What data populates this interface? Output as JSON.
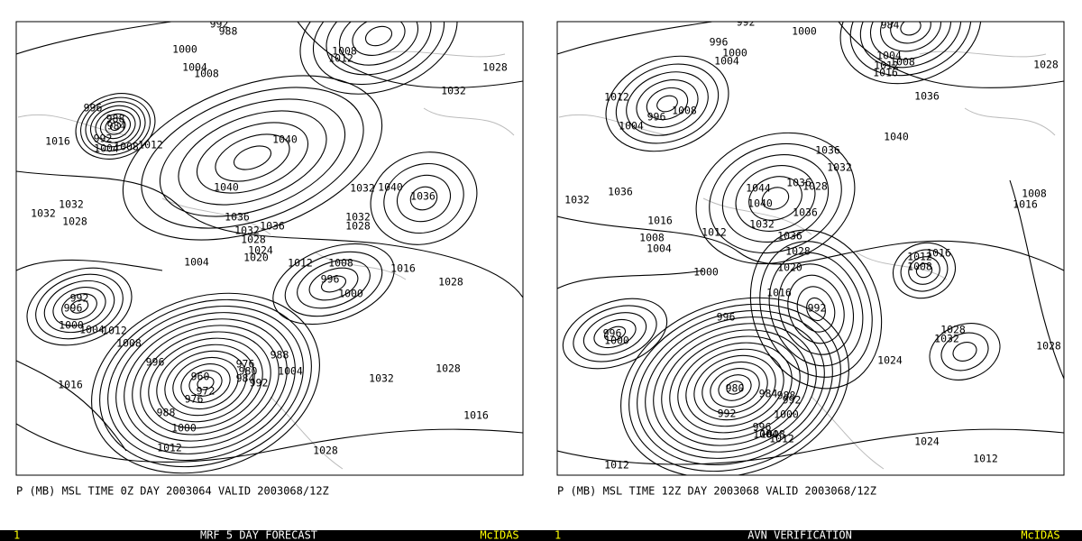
{
  "panels": [
    {
      "caption": "P (MB) MSL TIME 0Z DAY 2003064 VALID 2003068/12Z",
      "footer_number": "1",
      "footer_title": "MRF 5 DAY FORECAST",
      "footer_brand": "McIDAS",
      "contour_labels": [
        "992",
        "988",
        "1000",
        "1008",
        "1012",
        "1028",
        "1004",
        "1008",
        "1032",
        "996",
        "988",
        "984",
        "1016",
        "992",
        "1012",
        "1004",
        "1008",
        "1040",
        "1040",
        "1032",
        "1040",
        "1036",
        "1032",
        "1032",
        "1028",
        "1036",
        "1032",
        "1036",
        "1032",
        "1028",
        "1028",
        "1024",
        "1020",
        "1004",
        "1012",
        "1008",
        "1016",
        "996",
        "1000",
        "1028",
        "992",
        "996",
        "1000",
        "1004",
        "1012",
        "1008",
        "988",
        "996",
        "976",
        "980",
        "984",
        "992",
        "960",
        "1004",
        "1028",
        "1032",
        "1016",
        "972",
        "976",
        "988",
        "1016",
        "1000",
        "1012",
        "1028"
      ]
    },
    {
      "caption": "P (MB) MSL TIME 12Z DAY 2003068 VALID 2003068/12Z",
      "footer_number": "1",
      "footer_title": "AVN VERIFICATION",
      "footer_brand": "McIDAS",
      "contour_labels": [
        "992",
        "984",
        "1000",
        "996",
        "1000",
        "1004",
        "1004",
        "1008",
        "1012",
        "1016",
        "1028",
        "1012",
        "1008",
        "1036",
        "996",
        "1004",
        "1040",
        "1036",
        "1032",
        "1044",
        "1036",
        "1028",
        "1032",
        "1036",
        "1040",
        "1036",
        "1016",
        "1032",
        "1008",
        "1016",
        "1012",
        "1036",
        "1008",
        "1004",
        "1028",
        "1012",
        "1016",
        "1008",
        "1000",
        "1020",
        "1016",
        "992",
        "996",
        "996",
        "1000",
        "1028",
        "1032",
        "1028",
        "1024",
        "980",
        "984",
        "988",
        "992",
        "1000",
        "992",
        "996",
        "1004",
        "1008",
        "1012",
        "1024",
        "1012",
        "1012"
      ]
    }
  ]
}
